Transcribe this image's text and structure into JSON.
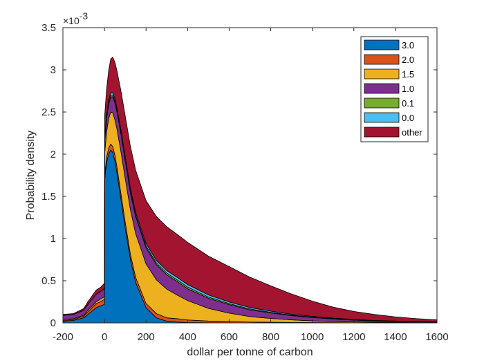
{
  "chart_data": {
    "type": "area",
    "stacked": true,
    "xlabel": "dollar per tonne of carbon",
    "ylabel": "Probability density",
    "y_exponent_label": "×10",
    "y_exponent_power": "-3",
    "xlim": [
      -200,
      1600
    ],
    "ylim": [
      0,
      3.5
    ],
    "xticks": [
      -200,
      0,
      200,
      400,
      600,
      800,
      1000,
      1200,
      1400,
      1600
    ],
    "yticks": [
      0,
      0.5,
      1,
      1.5,
      2,
      2.5,
      3,
      3.5
    ],
    "ytick_labels": [
      "0",
      "0.5",
      "1",
      "1.5",
      "2",
      "2.5",
      "3",
      "3.5"
    ],
    "grid": false,
    "legend_position": "top-right",
    "x": [
      -200,
      -150,
      -100,
      -80,
      -60,
      -40,
      -20,
      0,
      1,
      10,
      20,
      30,
      40,
      50,
      60,
      80,
      100,
      125,
      150,
      200,
      250,
      300,
      350,
      400,
      500,
      600,
      700,
      800,
      900,
      1000,
      1100,
      1200,
      1300,
      1400,
      1500,
      1600
    ],
    "series": [
      {
        "name": "3.0",
        "color": "#0072BD",
        "values": [
          0.02,
          0.03,
          0.06,
          0.1,
          0.14,
          0.18,
          0.2,
          0.22,
          1.7,
          1.9,
          2.0,
          2.05,
          2.02,
          1.92,
          1.78,
          1.45,
          1.12,
          0.75,
          0.48,
          0.18,
          0.06,
          0.02,
          0.01,
          0.005,
          0.002,
          0.001,
          0,
          0,
          0,
          0,
          0,
          0,
          0,
          0,
          0,
          0
        ]
      },
      {
        "name": "2.0",
        "color": "#D95319",
        "values": [
          0.01,
          0.01,
          0.02,
          0.03,
          0.04,
          0.05,
          0.05,
          0.06,
          0.06,
          0.06,
          0.07,
          0.07,
          0.07,
          0.07,
          0.07,
          0.07,
          0.07,
          0.06,
          0.06,
          0.05,
          0.05,
          0.04,
          0.04,
          0.03,
          0.02,
          0.015,
          0.01,
          0.008,
          0.006,
          0.004,
          0.003,
          0.002,
          0.002,
          0.001,
          0.001,
          0.001
        ]
      },
      {
        "name": "1.5",
        "color": "#EDB120",
        "values": [
          0.01,
          0.01,
          0.01,
          0.02,
          0.02,
          0.02,
          0.03,
          0.03,
          0.25,
          0.3,
          0.35,
          0.38,
          0.4,
          0.42,
          0.45,
          0.5,
          0.52,
          0.53,
          0.52,
          0.47,
          0.4,
          0.34,
          0.28,
          0.23,
          0.15,
          0.1,
          0.065,
          0.045,
          0.03,
          0.02,
          0.013,
          0.009,
          0.006,
          0.004,
          0.003,
          0.002
        ]
      },
      {
        "name": "1.0",
        "color": "#7E2F8E",
        "values": [
          0.05,
          0.05,
          0.06,
          0.07,
          0.08,
          0.09,
          0.09,
          0.1,
          0.15,
          0.16,
          0.17,
          0.18,
          0.19,
          0.2,
          0.2,
          0.21,
          0.21,
          0.2,
          0.2,
          0.19,
          0.18,
          0.17,
          0.16,
          0.14,
          0.12,
          0.1,
          0.08,
          0.065,
          0.05,
          0.04,
          0.03,
          0.022,
          0.016,
          0.012,
          0.009,
          0.006
        ]
      },
      {
        "name": "0.1",
        "color": "#77AC30",
        "values": [
          0,
          0,
          0,
          0,
          0,
          0,
          0,
          0,
          0.02,
          0.02,
          0.02,
          0.02,
          0.02,
          0.02,
          0.02,
          0.02,
          0.02,
          0.02,
          0.02,
          0.02,
          0.02,
          0.02,
          0.02,
          0.02,
          0.015,
          0.012,
          0.01,
          0.008,
          0.006,
          0.005,
          0.004,
          0.003,
          0.002,
          0.002,
          0.001,
          0.001
        ]
      },
      {
        "name": "0.0",
        "color": "#4DBEEE",
        "values": [
          0,
          0,
          0,
          0,
          0,
          0,
          0,
          0,
          0.03,
          0.03,
          0.03,
          0.03,
          0.03,
          0.03,
          0.03,
          0.03,
          0.03,
          0.03,
          0.03,
          0.03,
          0.03,
          0.03,
          0.03,
          0.03,
          0.025,
          0.02,
          0.017,
          0.014,
          0.011,
          0.009,
          0.007,
          0.005,
          0.004,
          0.003,
          0.002,
          0.002
        ]
      },
      {
        "name": "other",
        "color": "#A2142F",
        "values": [
          0.01,
          0.01,
          0.02,
          0.03,
          0.04,
          0.05,
          0.05,
          0.06,
          0.25,
          0.3,
          0.35,
          0.4,
          0.42,
          0.43,
          0.44,
          0.46,
          0.48,
          0.5,
          0.5,
          0.51,
          0.52,
          0.52,
          0.51,
          0.5,
          0.46,
          0.42,
          0.36,
          0.3,
          0.24,
          0.18,
          0.13,
          0.095,
          0.07,
          0.05,
          0.035,
          0.025
        ]
      }
    ]
  }
}
